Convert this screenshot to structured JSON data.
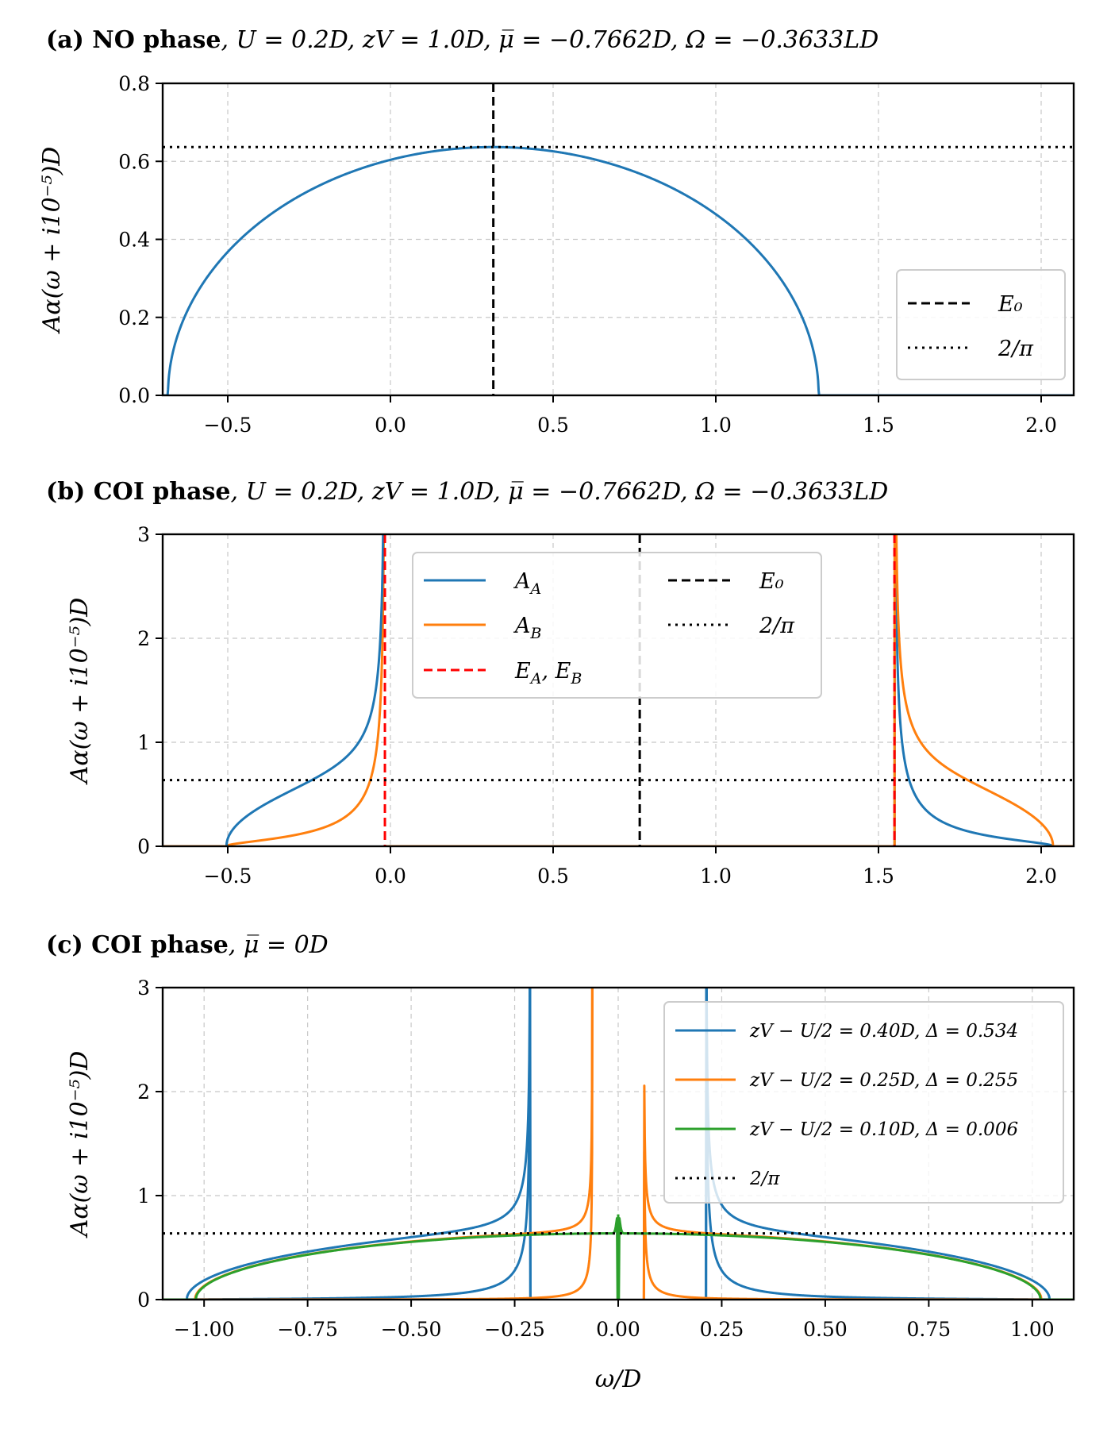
{
  "chart_data": [
    {
      "type": "line",
      "panel": "a",
      "title_bold": "(a) NO phase",
      "title_rest": ", U = 0.2D, zV = 1.0D, μ̅ = −0.7662D, Ω = −0.3633LD",
      "xlabel": "",
      "ylabel": "Aα(ω + i10⁻⁵)D",
      "xlim": [
        -0.7,
        2.1
      ],
      "ylim": [
        0,
        0.8
      ],
      "xticks": [
        -0.5,
        0.0,
        0.5,
        1.0,
        1.5,
        2.0
      ],
      "xtick_labels": [
        "−0.5",
        "0.0",
        "0.5",
        "1.0",
        "1.5",
        "2.0"
      ],
      "yticks": [
        0.0,
        0.2,
        0.4,
        0.6,
        0.8
      ],
      "ytick_labels": [
        "0.0",
        "0.2",
        "0.4",
        "0.6",
        "0.8"
      ],
      "grid": true,
      "series": [
        {
          "name": "A",
          "color": "#1f77b4",
          "kind": "semicircle",
          "center": 0.3162,
          "halfwidth": 1.0,
          "peak": 0.6366
        }
      ],
      "vlines": [
        {
          "name": "E0",
          "x": 0.3162,
          "color": "#000000",
          "style": "dashed"
        }
      ],
      "hlines": [
        {
          "name": "2/π",
          "y": 0.6366,
          "color": "#000000",
          "style": "dotted"
        }
      ],
      "legend": {
        "position": "lower-right",
        "entries": [
          {
            "label": "E₀",
            "color": "#000000",
            "style": "dashed"
          },
          {
            "label": "2/π",
            "color": "#000000",
            "style": "dotted"
          }
        ]
      }
    },
    {
      "type": "line",
      "panel": "b",
      "title_bold": "(b) COI phase",
      "title_rest": ", U = 0.2D, zV = 1.0D, μ̅ = −0.7662D, Ω = −0.3633LD",
      "xlabel": "",
      "ylabel": "Aα(ω + i10⁻⁵)D",
      "xlim": [
        -0.7,
        2.1
      ],
      "ylim": [
        0,
        3
      ],
      "xticks": [
        -0.5,
        0.0,
        0.5,
        1.0,
        1.5,
        2.0
      ],
      "xtick_labels": [
        "−0.5",
        "0.0",
        "0.5",
        "1.0",
        "1.5",
        "2.0"
      ],
      "yticks": [
        0,
        1,
        2,
        3
      ],
      "ytick_labels": [
        "0",
        "1",
        "2",
        "3"
      ],
      "grid": true,
      "center": 0.7662,
      "gap": 0.7832,
      "band_halfwidth": 1.0,
      "series": [
        {
          "name": "A_A",
          "label": "A_A",
          "color": "#1f77b4",
          "peak_side": "lower"
        },
        {
          "name": "A_B",
          "label": "A_B",
          "color": "#ff7f0e",
          "peak_side": "upper"
        }
      ],
      "vlines": [
        {
          "name": "E_A",
          "x": -0.017,
          "color": "#ff0000",
          "style": "dashed"
        },
        {
          "name": "E_B",
          "x": 1.549,
          "color": "#ff0000",
          "style": "dashed"
        },
        {
          "name": "E0",
          "x": 0.7662,
          "color": "#000000",
          "style": "dashed"
        }
      ],
      "hlines": [
        {
          "name": "2/π",
          "y": 0.6366,
          "color": "#000000",
          "style": "dotted"
        }
      ],
      "legend": {
        "position": "upper-center",
        "columns": 2,
        "entries": [
          {
            "label": "A",
            "sub": "A",
            "color": "#1f77b4",
            "style": "solid"
          },
          {
            "label": "A",
            "sub": "B",
            "color": "#ff7f0e",
            "style": "solid"
          },
          {
            "label": "E",
            "sub": "A",
            "label2": ", E",
            "sub2": "B",
            "color": "#ff0000",
            "style": "dashed"
          },
          {
            "label": "E₀",
            "color": "#000000",
            "style": "dashed"
          },
          {
            "label": "2/π",
            "color": "#000000",
            "style": "dotted"
          }
        ]
      }
    },
    {
      "type": "line",
      "panel": "c",
      "title_bold": "(c) COI phase",
      "title_rest": ", μ̅ = 0D",
      "xlabel": "ω/D",
      "ylabel": "Aα(ω + i10⁻⁵)D",
      "xlim": [
        -1.1,
        1.1
      ],
      "ylim": [
        0,
        3
      ],
      "xticks": [
        -1.0,
        -0.75,
        -0.5,
        -0.25,
        0.0,
        0.25,
        0.5,
        0.75,
        1.0
      ],
      "xtick_labels": [
        "−1.00",
        "−0.75",
        "−0.50",
        "−0.25",
        "0.00",
        "0.25",
        "0.50",
        "0.75",
        "1.00"
      ],
      "yticks": [
        0,
        1,
        2,
        3
      ],
      "ytick_labels": [
        "0",
        "1",
        "2",
        "3"
      ],
      "grid": true,
      "band_edge": 1.02,
      "series": [
        {
          "name": "zV − U/2 = 0.40D, Δ = 0.534",
          "color": "#1f77b4",
          "gap": 0.212
        },
        {
          "name": "zV − U/2 = 0.25D, Δ = 0.255",
          "color": "#ff7f0e",
          "gap": 0.062
        },
        {
          "name": "zV − U/2 = 0.10D, Δ = 0.006",
          "color": "#2ca02c",
          "gap": 0.0
        }
      ],
      "hlines": [
        {
          "name": "2/π",
          "y": 0.6366,
          "color": "#000000",
          "style": "dotted"
        }
      ],
      "legend": {
        "position": "upper-right",
        "entries": [
          {
            "label": "zV − U/2 = 0.40D, Δ = 0.534",
            "color": "#1f77b4",
            "style": "solid"
          },
          {
            "label": "zV − U/2 = 0.25D, Δ = 0.255",
            "color": "#ff7f0e",
            "style": "solid"
          },
          {
            "label": "zV − U/2 = 0.10D, Δ = 0.006",
            "color": "#2ca02c",
            "style": "solid"
          },
          {
            "label": "2/π",
            "color": "#000000",
            "style": "dotted"
          }
        ]
      }
    }
  ]
}
